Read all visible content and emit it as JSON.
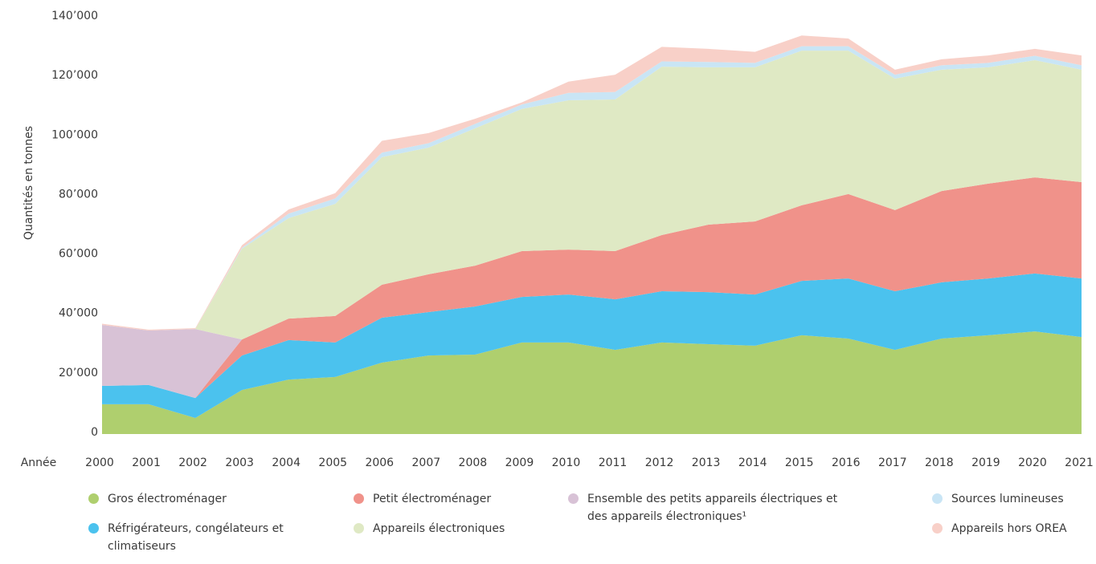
{
  "chart_data": {
    "type": "stacked-area",
    "y_label": "Quantités en tonnes",
    "x_label": "Année",
    "x": [
      2000,
      2001,
      2002,
      2003,
      2004,
      2005,
      2006,
      2007,
      2008,
      2009,
      2010,
      2011,
      2012,
      2013,
      2014,
      2015,
      2016,
      2017,
      2018,
      2019,
      2020,
      2021
    ],
    "xlim": [
      2000,
      2021
    ],
    "ylim": [
      0,
      140000
    ],
    "yticks": [
      0,
      {
        "value": 20000,
        "label": "20’000"
      },
      {
        "value": 40000,
        "label": "40’000"
      },
      {
        "value": 60000,
        "label": "60’000"
      },
      {
        "value": 80000,
        "label": "80’000"
      },
      {
        "value": 100000,
        "label": "100’000"
      },
      {
        "value": 120000,
        "label": "120’000"
      },
      {
        "value": 140000,
        "label": "140’000"
      }
    ],
    "series": [
      {
        "name": "Gros électroménager",
        "color": "#afcf6e",
        "values": [
          10000,
          10000,
          5400,
          14800,
          18300,
          19200,
          24000,
          26400,
          26700,
          30800,
          30800,
          28300,
          30800,
          30200,
          29700,
          33200,
          32100,
          28300,
          32100,
          33200,
          34500,
          32600
        ]
      },
      {
        "name": "Réfrigérateurs, congélateurs et climatiseurs",
        "color": "#4bc2ee",
        "values": [
          6200,
          6500,
          6700,
          11600,
          13300,
          11600,
          15100,
          14600,
          16200,
          15300,
          16100,
          17000,
          17200,
          17500,
          17200,
          18300,
          20200,
          19700,
          18900,
          19100,
          19500,
          19700
        ]
      },
      {
        "name": "Petit électroménager",
        "color": "#f0928a",
        "values": [
          0,
          0,
          0,
          5400,
          7200,
          8900,
          11100,
          12700,
          13700,
          15400,
          15100,
          16200,
          18900,
          22700,
          24600,
          25400,
          28400,
          27300,
          30700,
          31900,
          32300,
          32400
        ]
      },
      {
        "name": "Ensemble des petits appareils électriques et des appareils électroniques¹",
        "color": "#d8c2d6",
        "values": [
          20500,
          18300,
          23200,
          0,
          0,
          0,
          0,
          0,
          0,
          0,
          0,
          0,
          0,
          0,
          0,
          0,
          0,
          0,
          0,
          0,
          0,
          0
        ]
      },
      {
        "name": "Appareils électroniques",
        "color": "#dfe9c4",
        "values": [
          0,
          0,
          0,
          30500,
          33800,
          37700,
          42900,
          42600,
          46200,
          47800,
          50200,
          51000,
          56600,
          52900,
          51800,
          52000,
          48200,
          44200,
          40800,
          39100,
          39400,
          37800
        ]
      },
      {
        "name": "Sources lumineuses",
        "color": "#c9e5f5",
        "values": [
          0,
          0,
          0,
          300,
          1500,
          1800,
          1500,
          1500,
          1500,
          1500,
          2500,
          2500,
          1800,
          1800,
          1500,
          1500,
          1500,
          1300,
          1500,
          1500,
          1500,
          1500
        ]
      },
      {
        "name": "Appareils hors OREA",
        "color": "#f8d0c8",
        "values": [
          400,
          300,
          300,
          900,
          1400,
          1800,
          4000,
          3400,
          1700,
          700,
          3800,
          5800,
          4900,
          4400,
          3700,
          3600,
          2600,
          1700,
          2000,
          2500,
          2300,
          3300
        ]
      }
    ]
  }
}
